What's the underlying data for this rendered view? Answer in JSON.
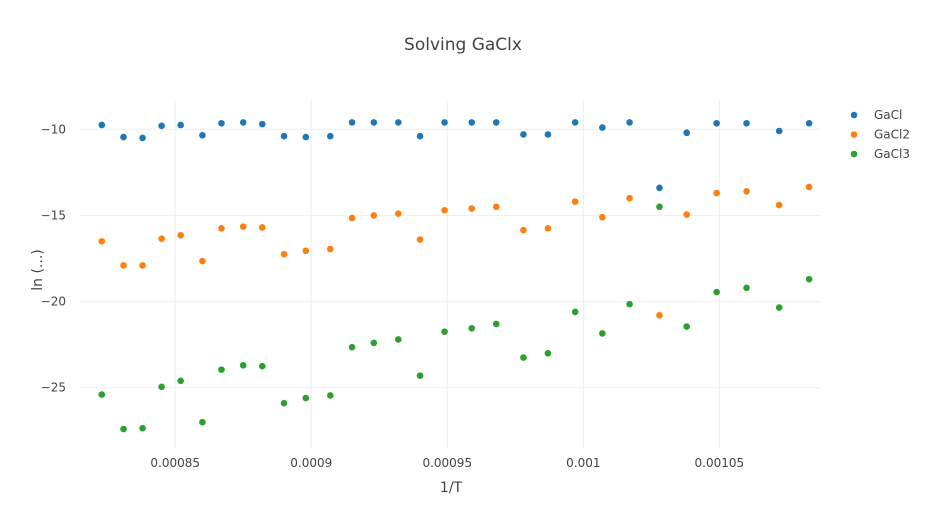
{
  "chart_data": {
    "type": "scatter",
    "title": "Solving GaClx",
    "xlabel": "1/T",
    "ylabel": "ln (...)",
    "xlim": [
      0.000815,
      0.001087
    ],
    "ylim": [
      -28.5,
      -8.3
    ],
    "xticks": [
      {
        "value": 0.00085,
        "label": "0.00085"
      },
      {
        "value": 0.0009,
        "label": "0.0009"
      },
      {
        "value": 0.00095,
        "label": "0.00095"
      },
      {
        "value": 0.001,
        "label": "0.001"
      },
      {
        "value": 0.00105,
        "label": "0.00105"
      }
    ],
    "yticks": [
      {
        "value": -10,
        "label": "−10"
      },
      {
        "value": -15,
        "label": "−15"
      },
      {
        "value": -20,
        "label": "−20"
      },
      {
        "value": -25,
        "label": "−25"
      }
    ],
    "grid": true,
    "legend_position": "top-right",
    "x": [
      0.000823,
      0.000831,
      0.000838,
      0.000845,
      0.000852,
      0.00086,
      0.000867,
      0.000875,
      0.000882,
      0.00089,
      0.000898,
      0.000907,
      0.000915,
      0.000923,
      0.000932,
      0.00094,
      0.000949,
      0.000959,
      0.000968,
      0.000978,
      0.000987,
      0.000997,
      0.001007,
      0.001017,
      0.001028,
      0.001038,
      0.001049,
      0.00106,
      0.001072,
      0.001083
    ],
    "series": [
      {
        "name": "GaCl",
        "color": "#1f77b4",
        "values": [
          -9.75,
          -10.45,
          -10.5,
          -9.8,
          -9.75,
          -10.35,
          -9.65,
          -9.6,
          -9.7,
          -10.4,
          -10.45,
          -10.4,
          -9.6,
          -9.6,
          -9.6,
          -10.4,
          -9.6,
          -9.6,
          -9.6,
          -10.3,
          -10.3,
          -9.6,
          -9.9,
          -9.6,
          -13.4,
          -10.2,
          -9.65,
          -9.65,
          -10.1,
          -9.65
        ]
      },
      {
        "name": "GaCl2",
        "color": "#ff7f0e",
        "values": [
          -16.5,
          -17.9,
          -17.9,
          -16.35,
          -16.15,
          -17.65,
          -15.75,
          -15.65,
          -15.7,
          -17.25,
          -17.05,
          -16.95,
          -15.15,
          -15.0,
          -14.9,
          -16.4,
          -14.7,
          -14.6,
          -14.5,
          -15.85,
          -15.75,
          -14.2,
          -15.1,
          -14.0,
          -20.8,
          -14.95,
          -13.7,
          -13.6,
          -14.4,
          -13.35
        ]
      },
      {
        "name": "GaCl3",
        "color": "#2ca02c",
        "values": [
          -25.4,
          -27.4,
          -27.35,
          -24.95,
          -24.6,
          -27.0,
          -23.95,
          -23.7,
          -23.75,
          -25.9,
          -25.6,
          -25.45,
          -22.65,
          -22.4,
          -22.2,
          -24.3,
          -21.75,
          -21.55,
          -21.3,
          -23.25,
          -23.0,
          -20.6,
          -21.85,
          -20.15,
          -14.5,
          -21.45,
          -19.45,
          -19.2,
          -20.35,
          -18.7
        ]
      }
    ]
  }
}
